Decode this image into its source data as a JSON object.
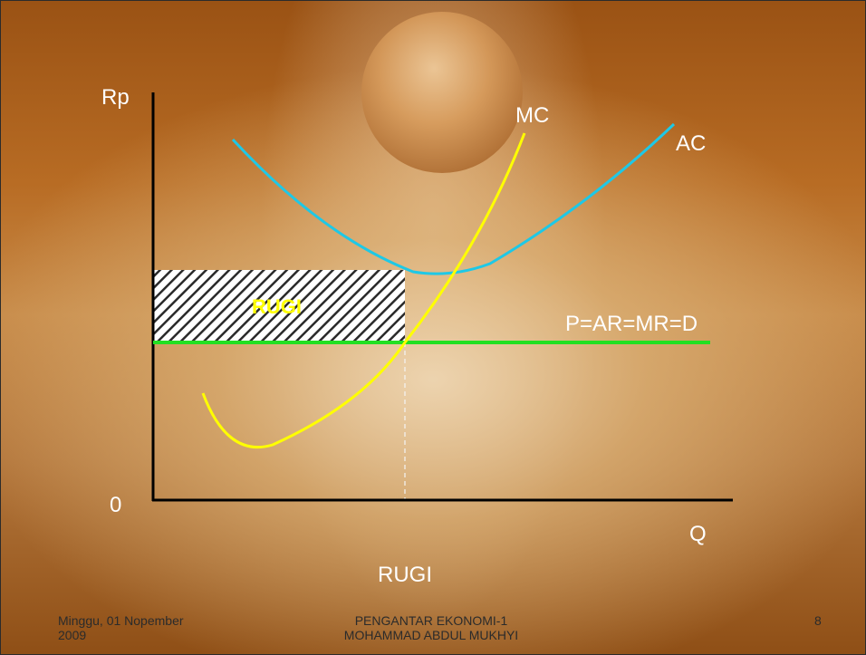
{
  "diagram": {
    "y_axis_label": "Rp",
    "x_axis_label": "Q",
    "origin_label": "0",
    "mc_label": "MC",
    "ac_label": "AC",
    "price_line_label": "P=AR=MR=D",
    "loss_area_label": "RUGI",
    "caption": "RUGI",
    "colors": {
      "mc_curve": "#ffff00",
      "ac_curve": "#1ec8e6",
      "price_line": "#22e022",
      "loss_area_label": "#ffff00",
      "axes": "#000000"
    }
  },
  "footer": {
    "date_line1": "Minggu, 01 Nopember",
    "date_line2": "2009",
    "course_line1": "PENGANTAR EKONOMI-1",
    "course_line2": "MOHAMMAD ABDUL MUKHYI",
    "slide_number": "8"
  }
}
